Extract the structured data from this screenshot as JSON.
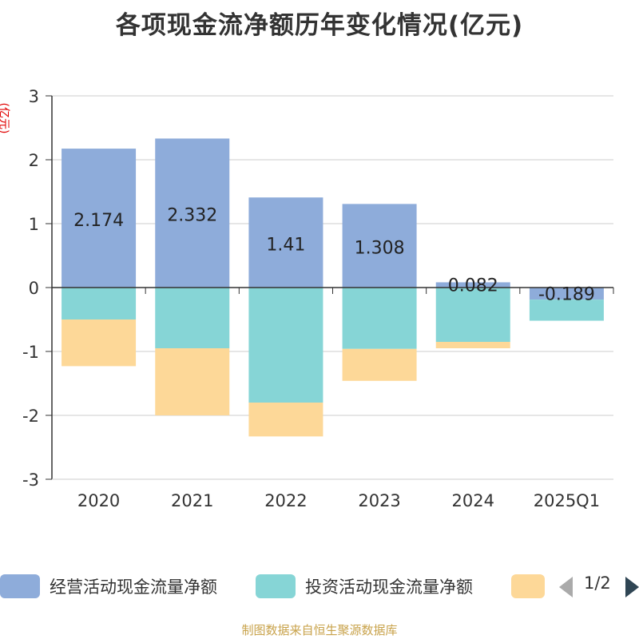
{
  "title": "各项现金流净额历年变化情况(亿元)",
  "unit_label": "(亿元)",
  "source": "制图数据来自恒生聚源数据库",
  "legend": {
    "items": [
      {
        "label": "经营活动现金流量净额",
        "color": "#8eacda"
      },
      {
        "label": "投资活动现金流量净额",
        "color": "#86d5d6"
      },
      {
        "label": "",
        "color": "#fdd898"
      }
    ],
    "pager": "1/2"
  },
  "chart_data": {
    "type": "bar",
    "stacked": true,
    "categories": [
      "2020",
      "2021",
      "2022",
      "2023",
      "2024",
      "2025Q1"
    ],
    "series": [
      {
        "name": "经营活动现金流量净额",
        "color": "#8eacda",
        "values": [
          2.174,
          2.332,
          1.41,
          1.308,
          0.082,
          -0.189
        ]
      },
      {
        "name": "投资活动现金流量净额",
        "color": "#86d5d6",
        "values": [
          -0.5,
          -0.95,
          -1.8,
          -0.96,
          -0.85,
          -0.33
        ]
      },
      {
        "name": "",
        "color": "#fdd898",
        "values": [
          -0.73,
          -1.05,
          -0.53,
          -0.5,
          -0.1,
          0
        ]
      }
    ],
    "data_labels": [
      "2.174",
      "2.332",
      "1.41",
      "1.308",
      "0.082",
      "-0.189"
    ],
    "y_ticks": [
      "3",
      "2",
      "1",
      "0",
      "-1",
      "-2",
      "-3"
    ],
    "ylim": [
      -3,
      3
    ],
    "grid": true,
    "legend_position": "bottom"
  }
}
